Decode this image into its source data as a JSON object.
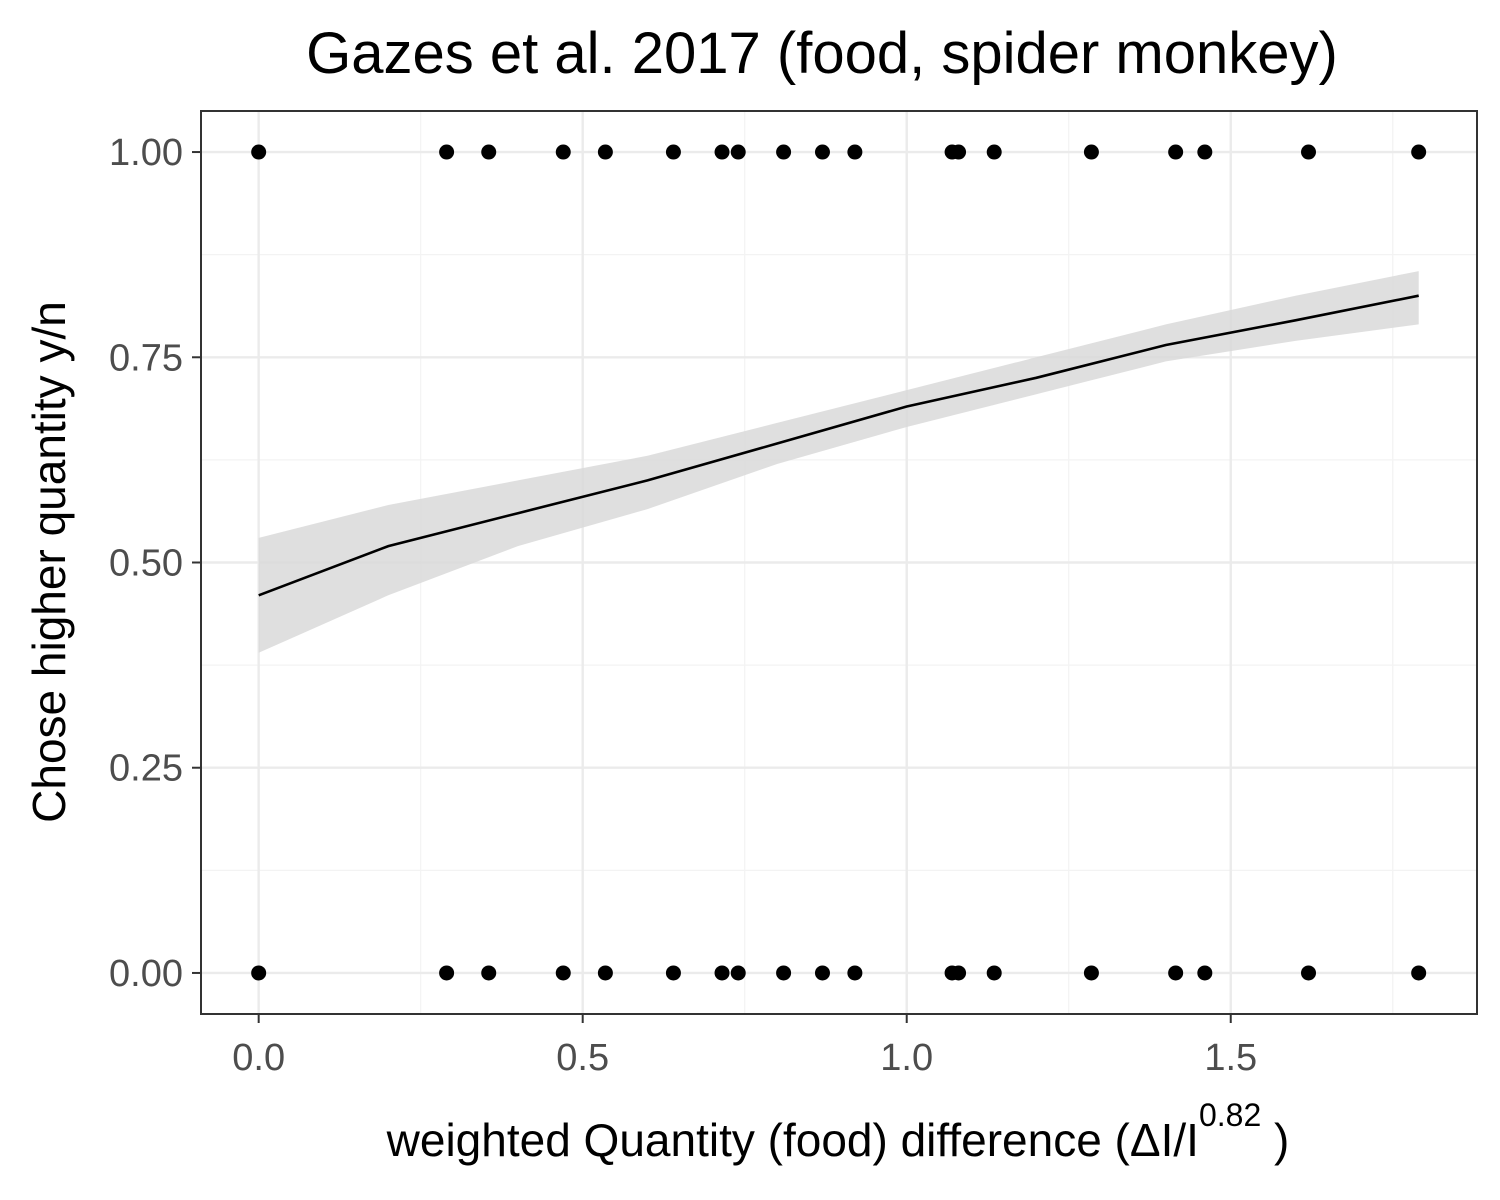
{
  "chart_data": {
    "type": "scatter",
    "title": "Gazes et al. 2017 (food, spider monkey)",
    "xlabel": {
      "main": "weighted  Quantity (food)  difference (ΔI/I",
      "superscript": "0.82",
      "suffix": " )"
    },
    "ylabel": "Chose higher quantity y/n",
    "xlim": [
      -0.089,
      1.88
    ],
    "ylim": [
      -0.05,
      1.05
    ],
    "x_ticks": [
      0.0,
      0.5,
      1.0,
      1.5
    ],
    "x_tick_labels": [
      "0.0",
      "0.5",
      "1.0",
      "1.5"
    ],
    "y_ticks": [
      0.0,
      0.25,
      0.5,
      0.75,
      1.0
    ],
    "y_tick_labels": [
      "0.00",
      "0.25",
      "0.50",
      "0.75",
      "1.00"
    ],
    "grid": true,
    "series": [
      {
        "kind": "points",
        "x": [
          0.0,
          0.29,
          0.355,
          0.47,
          0.535,
          0.64,
          0.715,
          0.74,
          0.81,
          0.87,
          0.92,
          1.07,
          1.08,
          1.135,
          1.285,
          1.415,
          1.46,
          1.62,
          1.79,
          0.0,
          0.29,
          0.355,
          0.47,
          0.535,
          0.64,
          0.715,
          0.74,
          0.81,
          0.87,
          0.92,
          1.07,
          1.08,
          1.135,
          1.285,
          1.415,
          1.46,
          1.62,
          1.79
        ],
        "y": [
          1,
          1,
          1,
          1,
          1,
          1,
          1,
          1,
          1,
          1,
          1,
          1,
          1,
          1,
          1,
          1,
          1,
          1,
          1,
          0,
          0,
          0,
          0,
          0,
          0,
          0,
          0,
          0,
          0,
          0,
          0,
          0,
          0,
          0,
          0,
          0,
          0,
          0
        ]
      },
      {
        "kind": "fit",
        "x": [
          0.0,
          0.2,
          0.4,
          0.6,
          0.8,
          1.0,
          1.2,
          1.4,
          1.6,
          1.79
        ],
        "y": [
          0.46,
          0.52,
          0.56,
          0.6,
          0.645,
          0.69,
          0.725,
          0.765,
          0.795,
          0.825
        ],
        "ci_lower": [
          0.39,
          0.46,
          0.52,
          0.565,
          0.62,
          0.665,
          0.705,
          0.745,
          0.77,
          0.79
        ],
        "ci_upper": [
          0.53,
          0.57,
          0.6,
          0.63,
          0.67,
          0.71,
          0.75,
          0.79,
          0.825,
          0.855
        ]
      }
    ],
    "colors": {
      "points": "#000000",
      "line": "#000000",
      "ribbon": "#d9d9d9",
      "grid_major": "#ebebeb",
      "grid_minor": "#f3f3f3",
      "panel_border": "#333333"
    }
  }
}
